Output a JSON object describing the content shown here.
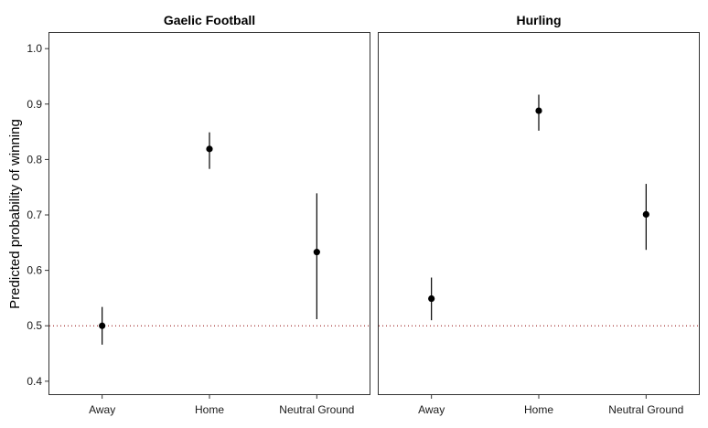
{
  "chart_data": {
    "type": "scatter",
    "ylabel": "Predicted probability of winning",
    "ylim": [
      0.375,
      1.03
    ],
    "y_ticks": [
      "0.4",
      "0.5",
      "0.6",
      "0.7",
      "0.8",
      "0.9",
      "1.0"
    ],
    "y_tick_values": [
      0.4,
      0.5,
      0.6,
      0.7,
      0.8,
      0.9,
      1.0
    ],
    "categories": [
      "Away",
      "Home",
      "Neutral Ground"
    ],
    "reference_line": {
      "y": 0.5,
      "style": "dotted",
      "color": "#8b0000"
    },
    "grid": false,
    "panels": [
      {
        "title": "Gaelic Football",
        "points": [
          {
            "category": "Away",
            "value": 0.5,
            "lower": 0.466,
            "upper": 0.534
          },
          {
            "category": "Home",
            "value": 0.819,
            "lower": 0.783,
            "upper": 0.849
          },
          {
            "category": "Neutral Ground",
            "value": 0.633,
            "lower": 0.512,
            "upper": 0.739
          }
        ]
      },
      {
        "title": "Hurling",
        "points": [
          {
            "category": "Away",
            "value": 0.549,
            "lower": 0.51,
            "upper": 0.587
          },
          {
            "category": "Home",
            "value": 0.888,
            "lower": 0.852,
            "upper": 0.917
          },
          {
            "category": "Neutral Ground",
            "value": 0.701,
            "lower": 0.637,
            "upper": 0.756
          }
        ]
      }
    ],
    "colors": {
      "point": "#000000",
      "error_bar": "#000000",
      "panel_border": "#333333"
    }
  }
}
